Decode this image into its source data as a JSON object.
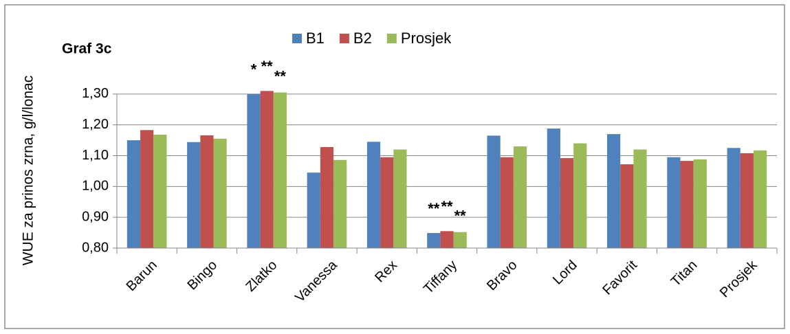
{
  "chart_data": {
    "type": "bar",
    "title": "Graf 3c",
    "y_label": "WUE za prinos zrna, g/l/lonac",
    "categories": [
      "Barun",
      "Bingo",
      "Zlatko",
      "Vanessa",
      "Rex",
      "Tiffany",
      "Bravo",
      "Lord",
      "Favorit",
      "Titan",
      "Prosjek"
    ],
    "series": [
      {
        "name": "B1",
        "color": "#4f81bd",
        "values": [
          1.15,
          1.144,
          1.3,
          1.045,
          1.145,
          0.849,
          1.165,
          1.188,
          1.17,
          1.095,
          1.125
        ]
      },
      {
        "name": "B2",
        "color": "#c0504d",
        "values": [
          1.183,
          1.166,
          1.31,
          1.128,
          1.095,
          0.855,
          1.095,
          1.092,
          1.072,
          1.083,
          1.108
        ]
      },
      {
        "name": "Prosjek",
        "color": "#9bbb59",
        "values": [
          1.168,
          1.155,
          1.305,
          1.086,
          1.12,
          0.852,
          1.13,
          1.14,
          1.12,
          1.088,
          1.117
        ]
      }
    ],
    "ylim": [
      0.8,
      1.4
    ],
    "yticks": [
      {
        "value": 0.8,
        "label": "0,80"
      },
      {
        "value": 0.9,
        "label": "0,90"
      },
      {
        "value": 1.0,
        "label": "1,00"
      },
      {
        "value": 1.1,
        "label": "1,10"
      },
      {
        "value": 1.2,
        "label": "1,20"
      },
      {
        "value": 1.3,
        "label": "1,30"
      }
    ],
    "grid": true,
    "legend": "top",
    "annotations": [
      {
        "text": "*",
        "category": "Zlatko",
        "series": "B1",
        "color": "#5b8fd6"
      },
      {
        "text": "**",
        "category": "Zlatko",
        "series": "B2",
        "color": "#c00000"
      },
      {
        "text": "**",
        "category": "Zlatko",
        "series": "Prosjek",
        "color": "#00b050"
      },
      {
        "text": "**",
        "category": "Tiffany",
        "series": "B1",
        "color": "#5b8fd6"
      },
      {
        "text": "**",
        "category": "Tiffany",
        "series": "B2",
        "color": "#c00000"
      },
      {
        "text": "**",
        "category": "Tiffany",
        "series": "Prosjek",
        "color": "#00b050"
      }
    ]
  }
}
